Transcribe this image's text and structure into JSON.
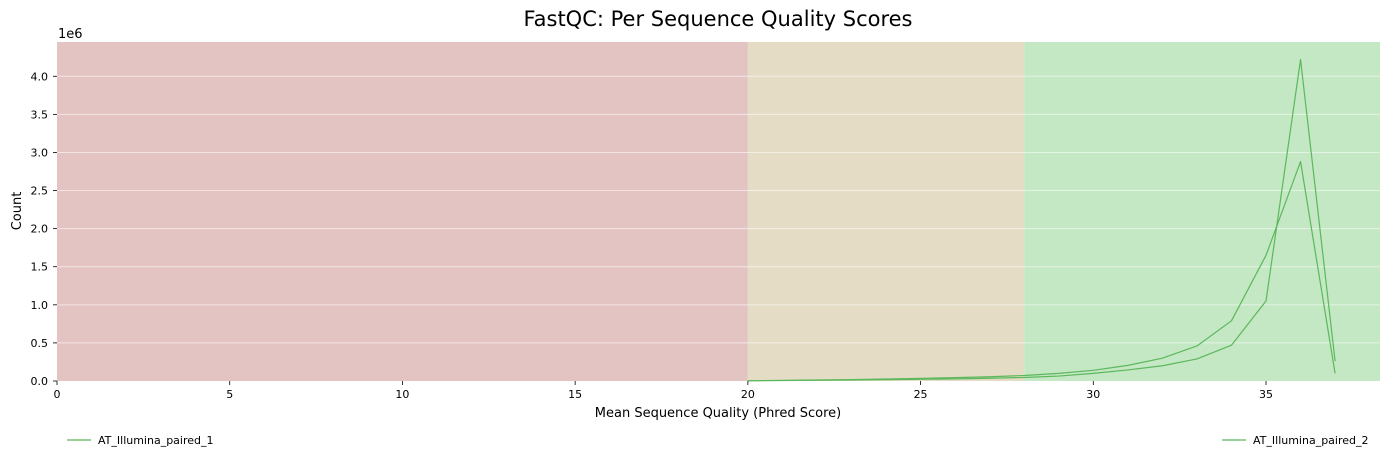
{
  "chart_data": {
    "type": "line",
    "title": "FastQC: Per Sequence Quality Scores",
    "xlabel": "Mean Sequence Quality (Phred Score)",
    "ylabel": "Count",
    "y_offset_label": "1e6",
    "xlim": [
      0,
      38.3
    ],
    "ylim": [
      0,
      4.45
    ],
    "y_unit_multiplier": 1000000,
    "x_ticks": [
      0,
      5,
      10,
      15,
      20,
      25,
      30,
      35
    ],
    "x_tick_labels": [
      "0",
      "5",
      "10",
      "15",
      "20",
      "25",
      "30",
      "35"
    ],
    "y_ticks": [
      0,
      0.5,
      1.0,
      1.5,
      2.0,
      2.5,
      3.0,
      3.5,
      4.0
    ],
    "y_tick_labels": [
      "0.0",
      "0.5",
      "1.0",
      "1.5",
      "2.0",
      "2.5",
      "3.0",
      "3.5",
      "4.0"
    ],
    "grid": true,
    "background_zones": [
      {
        "from": 0,
        "to": 20,
        "color": "#e4c3c3"
      },
      {
        "from": 20,
        "to": 28,
        "color": "#e5dcc5"
      },
      {
        "from": 28,
        "to": 38.3,
        "color": "#c4e7c4"
      }
    ],
    "series": [
      {
        "name": "AT_Illumina_paired_1",
        "color": "#5cb85c",
        "x": [
          20,
          21,
          22,
          23,
          24,
          25,
          26,
          27,
          28,
          29,
          30,
          31,
          32,
          33,
          34,
          35,
          36,
          37
        ],
        "values": [
          0.003,
          0.006,
          0.009,
          0.013,
          0.017,
          0.022,
          0.028,
          0.036,
          0.046,
          0.065,
          0.1,
          0.145,
          0.2,
          0.29,
          0.47,
          1.05,
          4.22,
          0.26
        ]
      },
      {
        "name": "AT_Illumina_paired_2",
        "color": "#5cb85c",
        "x": [
          20,
          21,
          22,
          23,
          24,
          25,
          26,
          27,
          28,
          29,
          30,
          31,
          32,
          33,
          34,
          35,
          36,
          37
        ],
        "values": [
          0.004,
          0.008,
          0.013,
          0.019,
          0.026,
          0.034,
          0.044,
          0.056,
          0.072,
          0.1,
          0.14,
          0.205,
          0.3,
          0.46,
          0.79,
          1.65,
          2.88,
          0.1
        ]
      }
    ],
    "legend_placement": "bottom"
  }
}
